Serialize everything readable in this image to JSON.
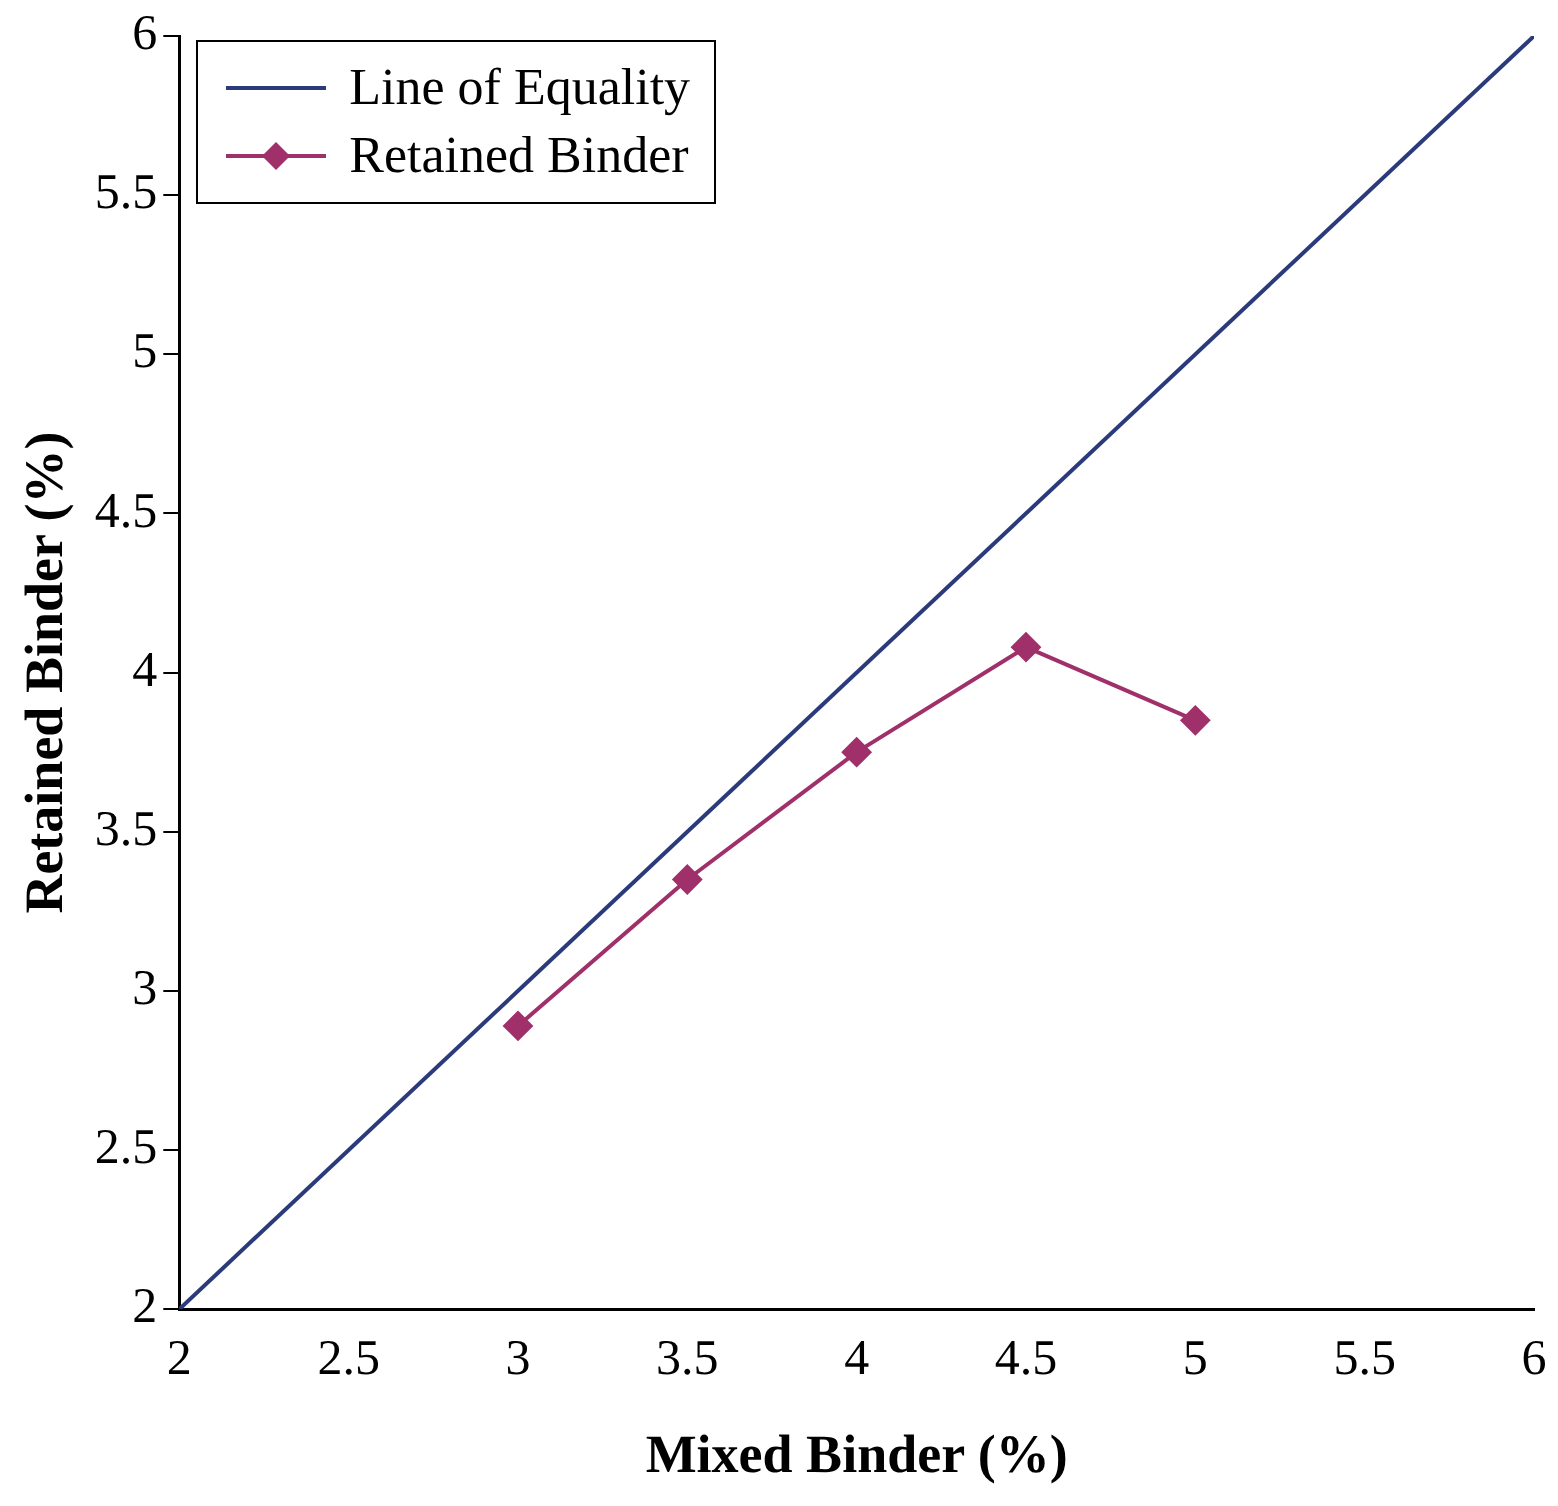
{
  "chart_data": {
    "type": "line",
    "xlabel": "Mixed Binder (%)",
    "ylabel": "Retained Binder (%)",
    "xlim": [
      2,
      6
    ],
    "xticks": [
      2,
      2.5,
      3,
      3.5,
      4,
      4.5,
      5,
      5.5,
      6
    ],
    "ylim": [
      2,
      6
    ],
    "yticks": [
      2,
      2.5,
      3,
      3.5,
      4,
      4.5,
      5,
      5.5,
      6
    ],
    "grid": false,
    "legend": "top left",
    "series": [
      {
        "name": "Line of Equality",
        "color": "#2b3a7a",
        "x": [
          2,
          6
        ],
        "values": [
          2,
          6
        ],
        "marker": "none"
      },
      {
        "name": "Retained Binder",
        "color": "#a0306a",
        "x": [
          3,
          3.5,
          4,
          4.5,
          5
        ],
        "values": [
          2.89,
          3.35,
          3.75,
          4.08,
          3.85
        ],
        "marker": "diamond"
      }
    ]
  }
}
